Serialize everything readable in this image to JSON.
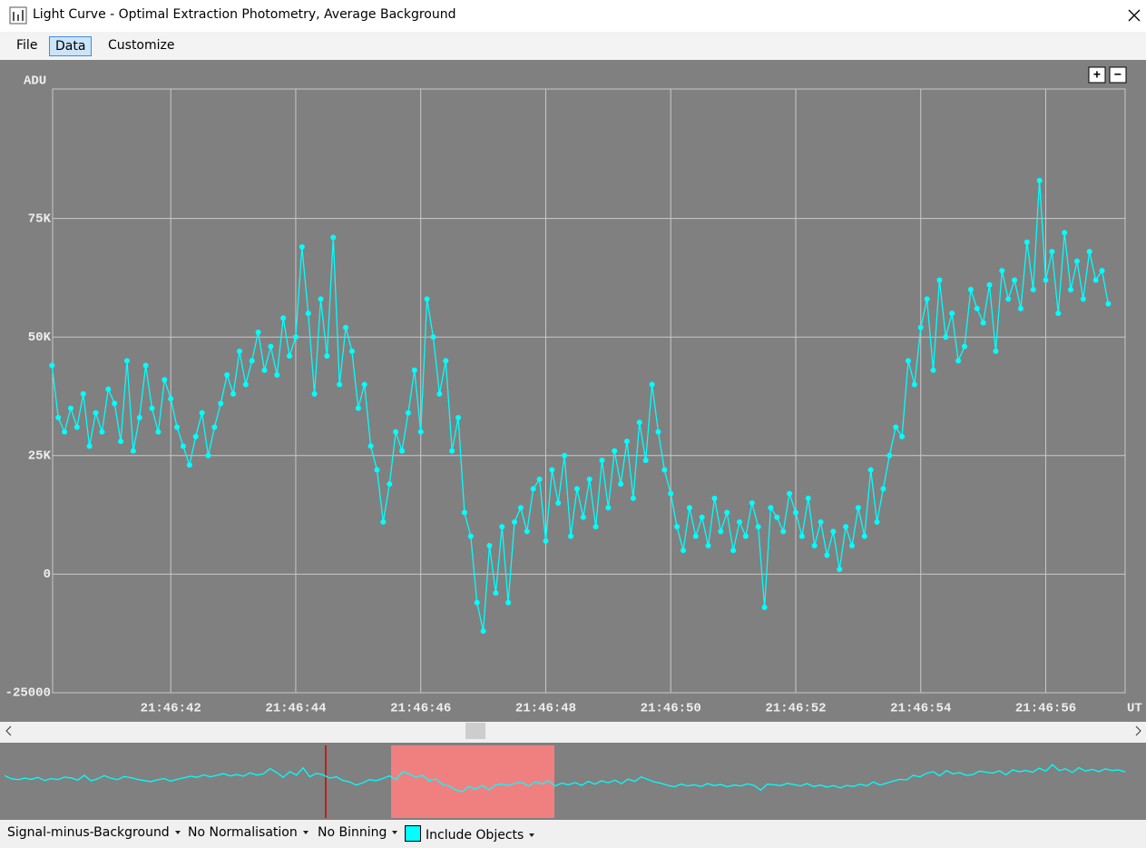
{
  "window": {
    "title": "Light Curve - Optimal Extraction Photometry, Average Background"
  },
  "menu": [
    "File",
    "Data",
    "Customize"
  ],
  "zoom_buttons": [
    "+",
    "−"
  ],
  "chart_data": {
    "type": "line",
    "y_label": "ADU",
    "x_label": "UT",
    "grid": true,
    "markers": true,
    "x": [
      40.1,
      40.2,
      40.3,
      40.4,
      40.5,
      40.6,
      40.7,
      40.8,
      40.9,
      41.0,
      41.1,
      41.2,
      41.3,
      41.4,
      41.5,
      41.6,
      41.7,
      41.8,
      41.9,
      42.0,
      42.1,
      42.2,
      42.3,
      42.4,
      42.5,
      42.6,
      42.7,
      42.8,
      42.9,
      43.0,
      43.1,
      43.2,
      43.3,
      43.4,
      43.5,
      43.6,
      43.7,
      43.8,
      43.9,
      44.0,
      44.1,
      44.2,
      44.3,
      44.4,
      44.5,
      44.6,
      44.7,
      44.8,
      44.9,
      45.0,
      45.1,
      45.2,
      45.3,
      45.4,
      45.5,
      45.6,
      45.7,
      45.8,
      45.9,
      46.0,
      46.1,
      46.2,
      46.3,
      46.4,
      46.5,
      46.6,
      46.7,
      46.8,
      46.9,
      47.0,
      47.1,
      47.2,
      47.3,
      47.4,
      47.5,
      47.6,
      47.7,
      47.8,
      47.9,
      48.0,
      48.1,
      48.2,
      48.3,
      48.4,
      48.5,
      48.6,
      48.7,
      48.8,
      48.9,
      49.0,
      49.1,
      49.2,
      49.3,
      49.4,
      49.5,
      49.6,
      49.7,
      49.8,
      49.9,
      50.0,
      50.1,
      50.2,
      50.3,
      50.4,
      50.5,
      50.6,
      50.7,
      50.8,
      50.9,
      51.0,
      51.1,
      51.2,
      51.3,
      51.4,
      51.5,
      51.6,
      51.7,
      51.8,
      51.9,
      52.0,
      52.1,
      52.2,
      52.3,
      52.4,
      52.5,
      52.6,
      52.7,
      52.8,
      52.9,
      53.0,
      53.1,
      53.2,
      53.3,
      53.4,
      53.5,
      53.6,
      53.7,
      53.8,
      53.9,
      54.0,
      54.1,
      54.2,
      54.3,
      54.4,
      54.5,
      54.6,
      54.7,
      54.8,
      54.9,
      55.0,
      55.1,
      55.2,
      55.3,
      55.4,
      55.5,
      55.6,
      55.7,
      55.8,
      55.9,
      56.0,
      56.1,
      56.2,
      56.3,
      56.4,
      56.5,
      56.6,
      56.7,
      56.8,
      56.9,
      57.0
    ],
    "series": [
      {
        "color": "#00ffff",
        "values": [
          44000,
          33000,
          30000,
          35000,
          31000,
          38000,
          27000,
          34000,
          30000,
          39000,
          36000,
          28000,
          45000,
          26000,
          33000,
          44000,
          35000,
          30000,
          41000,
          37000,
          31000,
          27000,
          23000,
          29000,
          34000,
          25000,
          31000,
          36000,
          42000,
          38000,
          47000,
          40000,
          45000,
          51000,
          43000,
          48000,
          42000,
          54000,
          46000,
          50000,
          69000,
          55000,
          38000,
          58000,
          46000,
          71000,
          40000,
          52000,
          47000,
          35000,
          40000,
          27000,
          22000,
          11000,
          19000,
          30000,
          26000,
          34000,
          43000,
          30000,
          58000,
          50000,
          38000,
          45000,
          26000,
          33000,
          13000,
          8000,
          -6000,
          -12000,
          6000,
          -4000,
          10000,
          -6000,
          11000,
          14000,
          9000,
          18000,
          20000,
          7000,
          22000,
          15000,
          25000,
          8000,
          18000,
          12000,
          20000,
          10000,
          24000,
          14000,
          26000,
          19000,
          28000,
          16000,
          32000,
          24000,
          40000,
          30000,
          22000,
          17000,
          10000,
          5000,
          14000,
          8000,
          12000,
          6000,
          16000,
          9000,
          13000,
          5000,
          11000,
          8000,
          15000,
          10000,
          -7000,
          14000,
          12000,
          9000,
          17000,
          13000,
          8000,
          16000,
          6000,
          11000,
          4000,
          9000,
          1000,
          10000,
          6000,
          14000,
          8000,
          22000,
          11000,
          18000,
          25000,
          31000,
          29000,
          45000,
          40000,
          52000,
          58000,
          43000,
          62000,
          50000,
          55000,
          45000,
          48000,
          60000,
          56000,
          53000,
          61000,
          47000,
          64000,
          58000,
          62000,
          56000,
          70000,
          60000,
          83000,
          62000,
          68000,
          55000,
          72000,
          60000,
          66000,
          58000,
          68000,
          62000,
          64000,
          57000
        ]
      }
    ],
    "xlim": [
      40.11,
      57.27
    ],
    "xticks": [
      {
        "value": 42,
        "label": "21:46:42"
      },
      {
        "value": 44,
        "label": "21:46:44"
      },
      {
        "value": 46,
        "label": "21:46:46"
      },
      {
        "value": 48,
        "label": "21:46:48"
      },
      {
        "value": 50,
        "label": "21:46:50"
      },
      {
        "value": 52,
        "label": "21:46:52"
      },
      {
        "value": 54,
        "label": "21:46:54"
      },
      {
        "value": 56,
        "label": "21:46:56"
      }
    ],
    "ylim": [
      -25000,
      102300
    ],
    "yticks": [
      -25000,
      0,
      {
        "value": 25000,
        "label": "25K"
      },
      {
        "value": 50000,
        "label": "50K"
      },
      {
        "value": 75000,
        "label": "75K"
      }
    ]
  },
  "toolbar": [
    "Signal-minus-Background",
    "No Normalisation",
    "No Binning",
    "Include Objects"
  ]
}
